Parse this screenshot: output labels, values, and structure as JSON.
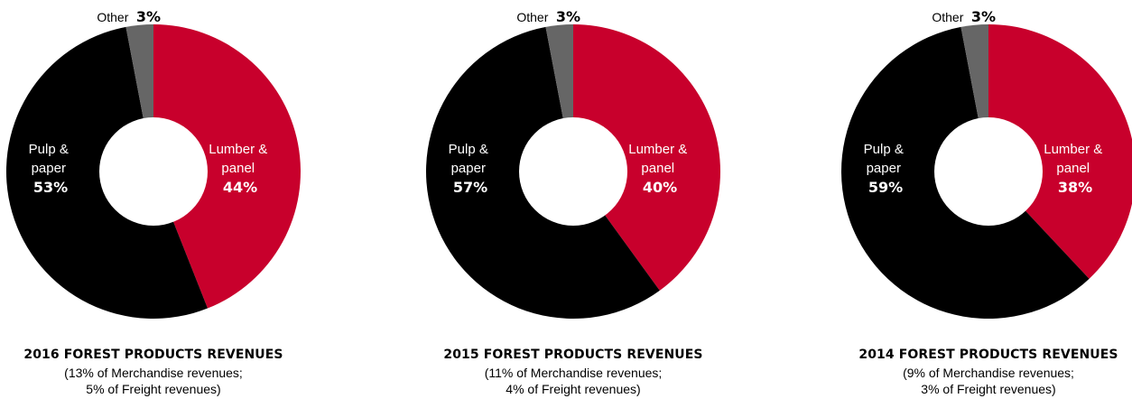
{
  "colors": {
    "lumber": "#c8002c",
    "pulp": "#000000",
    "other": "#666666",
    "hole": "#ffffff"
  },
  "chart_data": [
    {
      "type": "pie",
      "title": "2016 FOREST PRODUCTS REVENUES",
      "subtitle_line1": "(13% of Merchandise revenues;",
      "subtitle_line2": "5% of Freight revenues)",
      "slices": [
        {
          "label_line1": "Lumber &",
          "label_line2": "panel",
          "value": 44,
          "value_text": "44%",
          "color_key": "lumber"
        },
        {
          "label_line1": "Pulp &",
          "label_line2": "paper",
          "value": 53,
          "value_text": "53%",
          "color_key": "pulp"
        },
        {
          "label_line1": "Other",
          "label_line2": "",
          "value": 3,
          "value_text": "3%",
          "color_key": "other"
        }
      ]
    },
    {
      "type": "pie",
      "title": "2015 FOREST PRODUCTS REVENUES",
      "subtitle_line1": "(11% of Merchandise revenues;",
      "subtitle_line2": "4% of Freight revenues)",
      "slices": [
        {
          "label_line1": "Lumber &",
          "label_line2": "panel",
          "value": 40,
          "value_text": "40%",
          "color_key": "lumber"
        },
        {
          "label_line1": "Pulp &",
          "label_line2": "paper",
          "value": 57,
          "value_text": "57%",
          "color_key": "pulp"
        },
        {
          "label_line1": "Other",
          "label_line2": "",
          "value": 3,
          "value_text": "3%",
          "color_key": "other"
        }
      ]
    },
    {
      "type": "pie",
      "title": "2014 FOREST PRODUCTS REVENUES",
      "subtitle_line1": "(9% of Merchandise revenues;",
      "subtitle_line2": "3% of Freight revenues)",
      "slices": [
        {
          "label_line1": "Lumber &",
          "label_line2": "panel",
          "value": 38,
          "value_text": "38%",
          "color_key": "lumber"
        },
        {
          "label_line1": "Pulp &",
          "label_line2": "paper",
          "value": 59,
          "value_text": "59%",
          "color_key": "pulp"
        },
        {
          "label_line1": "Other",
          "label_line2": "",
          "value": 3,
          "value_text": "3%",
          "color_key": "other"
        }
      ]
    }
  ]
}
